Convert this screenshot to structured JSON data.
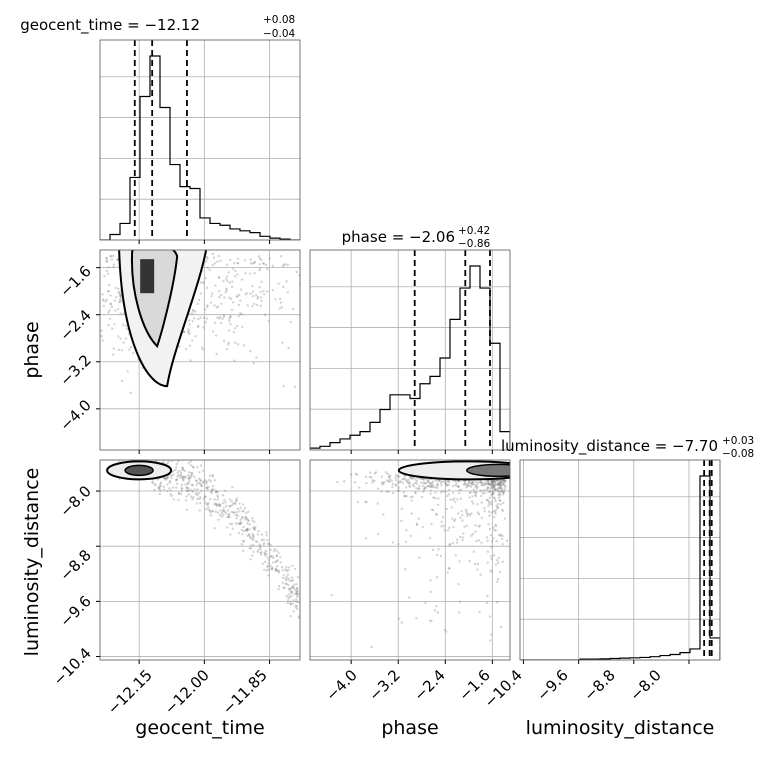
{
  "figure": {
    "titles": {
      "geocent_time": {
        "base": "geocent_time = −12.12",
        "plus": "+0.08",
        "minus": "−0.04"
      },
      "phase": {
        "base": "phase = −2.06",
        "plus": "+0.42",
        "minus": "−0.86"
      },
      "luminosity_distance": {
        "base": "luminosity_distance = −7.70",
        "plus": "+0.03",
        "minus": "−0.08"
      }
    },
    "xlabels": {
      "geocent_time": "geocent_time",
      "phase": "phase",
      "luminosity_distance": "luminosity_distance"
    },
    "ylabels": {
      "phase": "phase",
      "luminosity_distance": "luminosity_distance"
    },
    "ticks": {
      "geocent_time": [
        "−12.15",
        "−12.00",
        "−11.85"
      ],
      "phase_x": [
        "−4.0",
        "−3.2",
        "−2.4",
        "−1.6"
      ],
      "phase_y": [
        "−1.6",
        "−2.4",
        "−3.2",
        "−4.0"
      ],
      "luminosity_distance_x": [
        "−10.4",
        "−9.6",
        "−8.8",
        "−8.0"
      ],
      "luminosity_distance_y": [
        "−8.0",
        "−8.8",
        "−9.6",
        "−10.4"
      ]
    }
  },
  "chart_data": {
    "type": "corner",
    "parameters": [
      "geocent_time",
      "phase",
      "luminosity_distance"
    ],
    "ranges": {
      "geocent_time": [
        -12.24,
        -11.78
      ],
      "phase": [
        -4.7,
        -1.3
      ],
      "luminosity_distance": [
        -10.45,
        -7.55
      ]
    },
    "tick_values": {
      "geocent_time": [
        -12.15,
        -12.0,
        -11.85
      ],
      "phase": [
        -4.0,
        -3.2,
        -2.4,
        -1.6
      ],
      "luminosity_distance": [
        -10.4,
        -9.6,
        -8.8,
        -8.0
      ]
    },
    "quantiles": {
      "geocent_time": [
        -12.16,
        -12.12,
        -12.04
      ],
      "phase": [
        -2.92,
        -2.06,
        -1.64
      ],
      "luminosity_distance": [
        -7.78,
        -7.7,
        -7.67
      ]
    },
    "histograms": {
      "geocent_time": {
        "bin_edges": [
          -12.24,
          -12.217,
          -12.194,
          -12.171,
          -12.148,
          -12.125,
          -12.102,
          -12.079,
          -12.056,
          -12.033,
          -12.01,
          -11.987,
          -11.964,
          -11.941,
          -11.918,
          -11.895,
          -11.872,
          -11.849,
          -11.826,
          -11.803,
          -11.78
        ],
        "counts": [
          0.0,
          0.03,
          0.09,
          0.34,
          0.78,
          1.0,
          0.72,
          0.41,
          0.29,
          0.28,
          0.12,
          0.09,
          0.08,
          0.06,
          0.05,
          0.04,
          0.02,
          0.01,
          0.005,
          0.0
        ]
      },
      "phase": {
        "bin_edges": [
          -4.7,
          -4.53,
          -4.36,
          -4.19,
          -4.02,
          -3.85,
          -3.68,
          -3.51,
          -3.34,
          -3.17,
          -3.0,
          -2.83,
          -2.66,
          -2.49,
          -2.32,
          -2.15,
          -1.98,
          -1.81,
          -1.64,
          -1.47,
          -1.3
        ],
        "counts": [
          0.01,
          0.02,
          0.04,
          0.06,
          0.08,
          0.1,
          0.15,
          0.22,
          0.3,
          0.3,
          0.28,
          0.36,
          0.4,
          0.5,
          0.71,
          0.88,
          1.0,
          0.88,
          0.58,
          0.1
        ]
      },
      "luminosity_distance": {
        "bin_edges": [
          -10.45,
          -10.305,
          -10.16,
          -10.015,
          -9.87,
          -9.725,
          -9.58,
          -9.435,
          -9.29,
          -9.145,
          -9.0,
          -8.855,
          -8.71,
          -8.565,
          -8.42,
          -8.275,
          -8.13,
          -7.985,
          -7.84,
          -7.695,
          -7.55
        ],
        "counts": [
          0.0,
          0.0,
          0.0,
          0.0,
          0.0,
          0.0,
          0.005,
          0.005,
          0.006,
          0.008,
          0.01,
          0.012,
          0.014,
          0.018,
          0.024,
          0.03,
          0.04,
          0.06,
          1.0,
          0.12
        ]
      }
    },
    "sample_trends": {
      "phase_vs_geocent_time": {
        "center": [
          -12.13,
          -2.05
        ],
        "spread": [
          0.07,
          0.55
        ]
      },
      "luminosity_distance_vs_geocent_time": {
        "core": [
          -12.13,
          -7.7
        ],
        "tail": [
          [
            -12.1,
            -7.8
          ],
          [
            -12.0,
            -8.1
          ],
          [
            -11.9,
            -8.7
          ],
          [
            -11.8,
            -9.6
          ]
        ]
      },
      "luminosity_distance_vs_phase": {
        "core": [
          -2.0,
          -7.7
        ],
        "spread": [
          0.8,
          0.1
        ]
      }
    },
    "grid": true,
    "colors": {
      "line": "#000000",
      "grid": "#b0b0b0",
      "samples": "#808080"
    }
  }
}
